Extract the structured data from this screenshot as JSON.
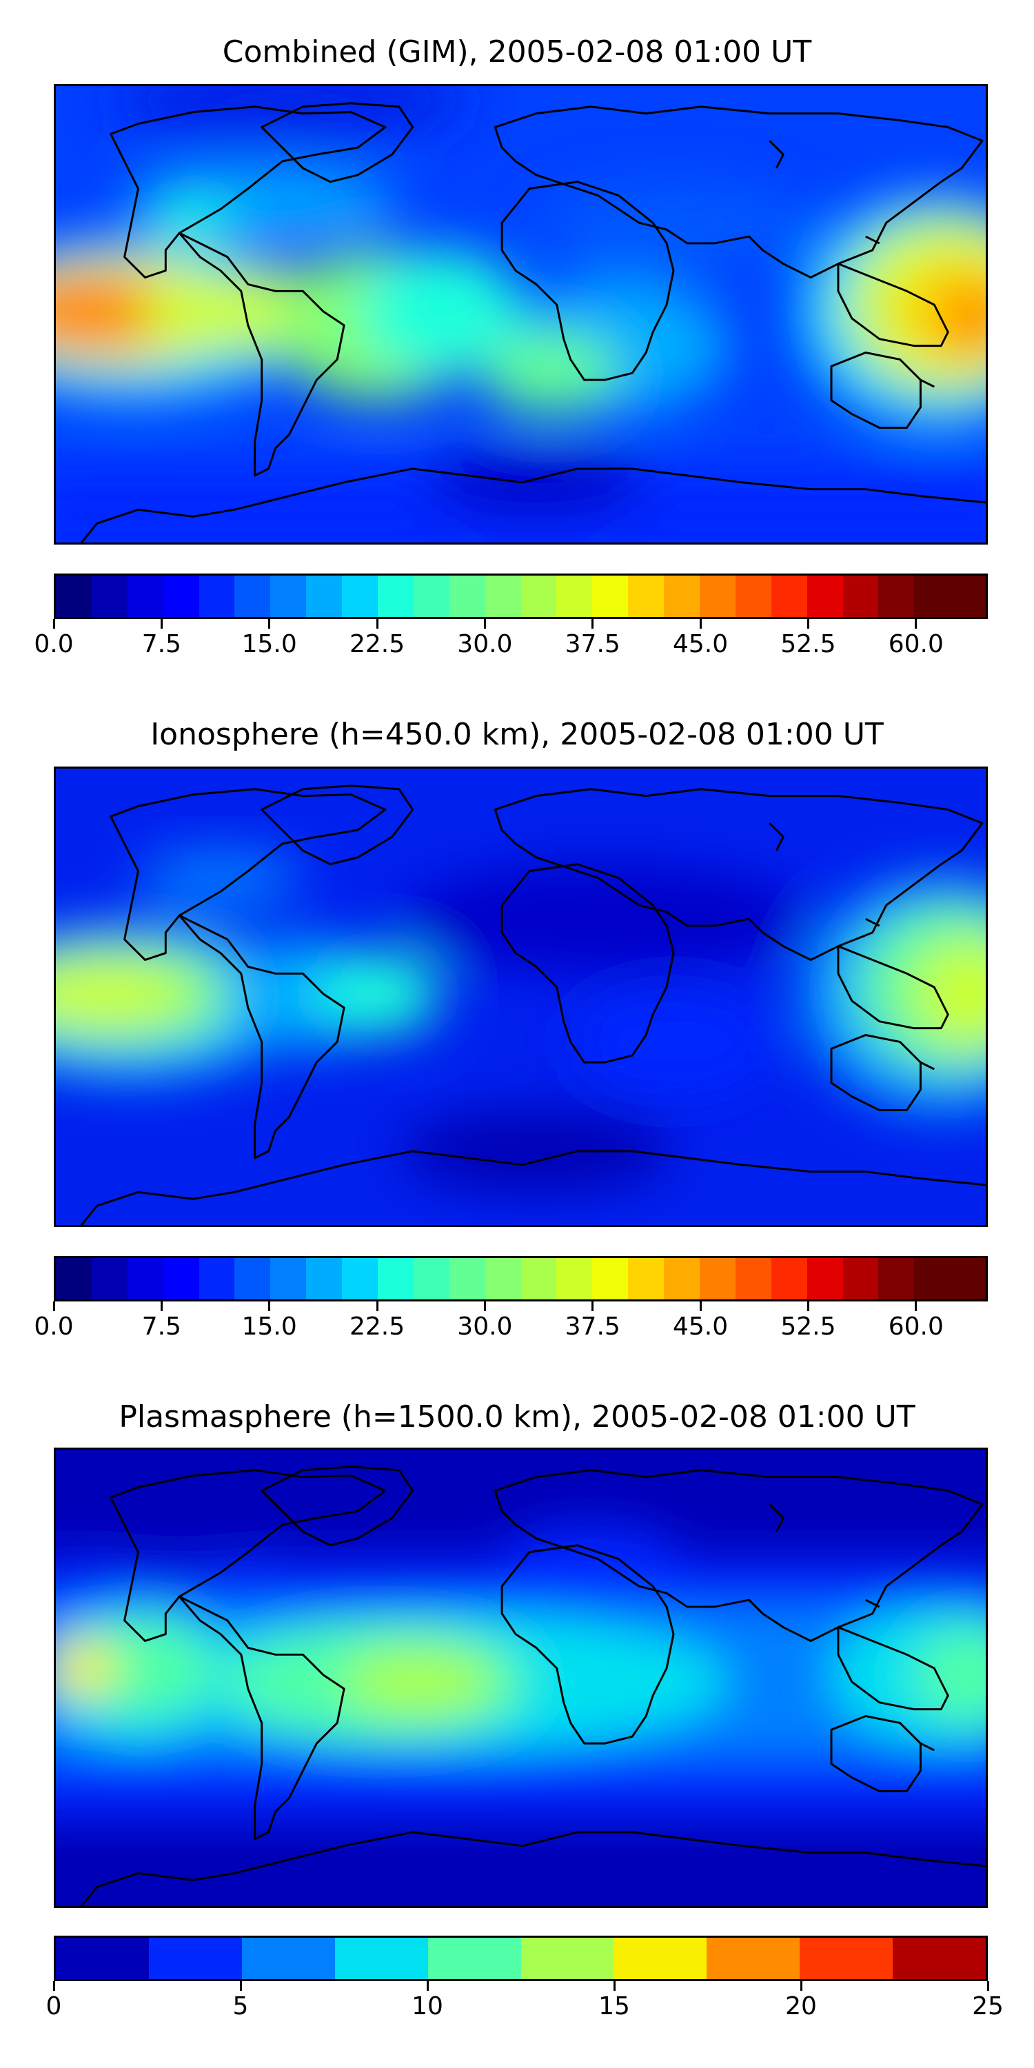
{
  "panels": [
    {
      "title": "Combined (GIM), 2005-02-08 01:00 UT",
      "field": "combined",
      "colorbar": {
        "colors": [
          "#00007f",
          "#0000b2",
          "#0000e3",
          "#0000ff",
          "#0028ff",
          "#0058ff",
          "#0080ff",
          "#00acff",
          "#00d4ff",
          "#1cffdb",
          "#3fffb7",
          "#63ff94",
          "#86ff70",
          "#aaff4d",
          "#cdff29",
          "#f0ff06",
          "#ffd400",
          "#ffab00",
          "#ff8000",
          "#ff5700",
          "#ff2a00",
          "#e30000",
          "#b20000",
          "#7f0000",
          "#600000"
        ],
        "ticks": [
          "0.0",
          "7.5",
          "15.0",
          "22.5",
          "30.0",
          "37.5",
          "45.0",
          "52.5",
          "60.0"
        ],
        "range": [
          0,
          65
        ],
        "step": 2.5
      }
    },
    {
      "title": "Ionosphere  (h=450.0 km), 2005-02-08 01:00 UT",
      "field": "ionosphere",
      "colorbar": {
        "colors": [
          "#00007f",
          "#0000b2",
          "#0000e3",
          "#0000ff",
          "#0028ff",
          "#0058ff",
          "#0080ff",
          "#00acff",
          "#00d4ff",
          "#1cffdb",
          "#3fffb7",
          "#63ff94",
          "#86ff70",
          "#aaff4d",
          "#cdff29",
          "#f0ff06",
          "#ffd400",
          "#ffab00",
          "#ff8000",
          "#ff5700",
          "#ff2a00",
          "#e30000",
          "#b20000",
          "#7f0000",
          "#600000"
        ],
        "ticks": [
          "0.0",
          "7.5",
          "15.0",
          "22.5",
          "30.0",
          "37.5",
          "45.0",
          "52.5",
          "60.0"
        ],
        "range": [
          0,
          65
        ],
        "step": 2.5
      }
    },
    {
      "title": "Plasmasphere (h=1500.0 km), 2005-02-08 01:00 UT",
      "field": "plasmasphere",
      "colorbar": {
        "colors": [
          "#0000b8",
          "#0028ff",
          "#0080ff",
          "#00e0f0",
          "#50ffa8",
          "#a8ff50",
          "#f8f000",
          "#ff8c00",
          "#ff3800",
          "#b00000"
        ],
        "ticks": [
          "0",
          "5",
          "10",
          "15",
          "20",
          "25"
        ],
        "range": [
          0,
          25
        ],
        "step": 2.5
      }
    }
  ],
  "map": {
    "coastline_color": "#000000",
    "projection": "plate-carree"
  }
}
